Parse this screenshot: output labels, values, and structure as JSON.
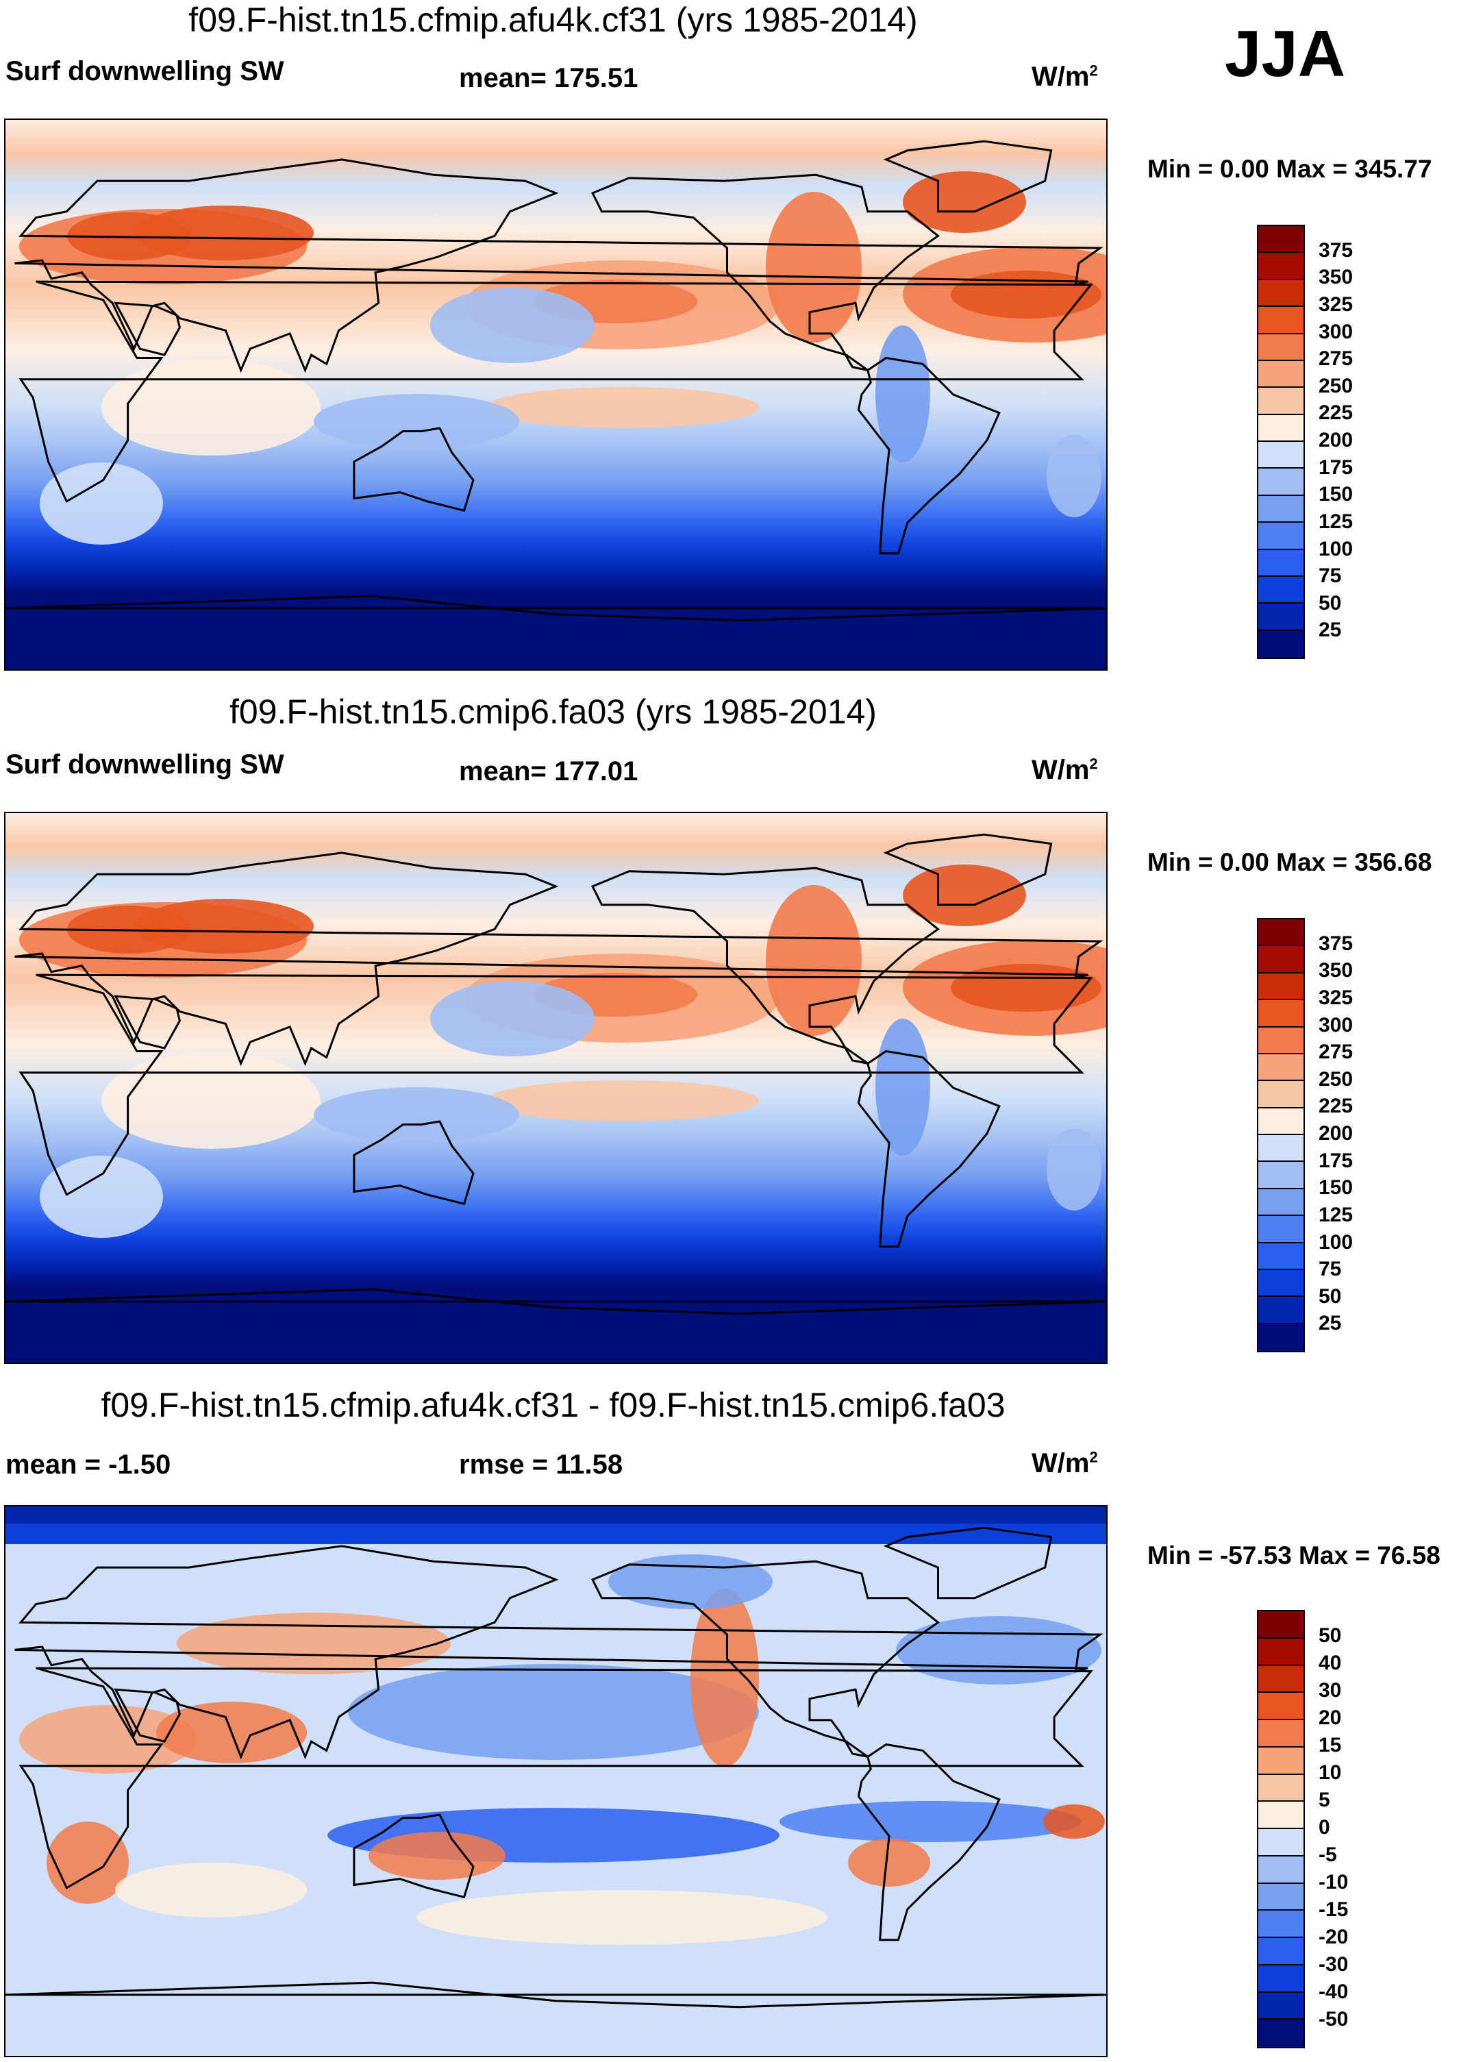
{
  "season": "JJA",
  "units_label": "W/m",
  "units_sup": "2",
  "panels": [
    {
      "title": "f09.F-hist.tn15.cfmip.afu4k.cf31 (yrs 1985-2014)",
      "left_label": "Surf downwelling SW",
      "center_label": "mean= 175.51",
      "minmax": "Min =   0.00 Max = 345.77"
    },
    {
      "title": "f09.F-hist.tn15.cmip6.fa03 (yrs 1985-2014)",
      "left_label": "Surf downwelling SW",
      "center_label": "mean= 177.01",
      "minmax": "Min =   0.00 Max = 356.68"
    },
    {
      "title": "f09.F-hist.tn15.cfmip.afu4k.cf31 - f09.F-hist.tn15.cmip6.fa03",
      "left_label": "mean =  -1.50",
      "center_label": "rmse =  11.58",
      "minmax": "Min = -57.53 Max =  76.58"
    }
  ],
  "chart_data": [
    {
      "type": "heatmap",
      "title": "f09.F-hist.tn15.cfmip.afu4k.cf31 (yrs 1985-2014)",
      "variable": "Surf downwelling SW",
      "units": "W/m2",
      "mean": 175.51,
      "min": 0.0,
      "max": 345.77,
      "levels": [
        25,
        50,
        75,
        100,
        125,
        150,
        175,
        200,
        225,
        250,
        275,
        300,
        325,
        350,
        375
      ]
    },
    {
      "type": "heatmap",
      "title": "f09.F-hist.tn15.cmip6.fa03 (yrs 1985-2014)",
      "variable": "Surf downwelling SW",
      "units": "W/m2",
      "mean": 177.01,
      "min": 0.0,
      "max": 356.68,
      "levels": [
        25,
        50,
        75,
        100,
        125,
        150,
        175,
        200,
        225,
        250,
        275,
        300,
        325,
        350,
        375
      ]
    },
    {
      "type": "heatmap",
      "title": "f09.F-hist.tn15.cfmip.afu4k.cf31 - f09.F-hist.tn15.cmip6.fa03",
      "units": "W/m2",
      "mean": -1.5,
      "rmse": 11.58,
      "min": -57.53,
      "max": 76.58,
      "levels": [
        -50,
        -40,
        -30,
        -20,
        -15,
        -10,
        -5,
        0,
        5,
        10,
        15,
        20,
        30,
        40,
        50
      ]
    }
  ],
  "colors": {
    "abs_scale": [
      "#000e7c",
      "#0026b0",
      "#0d3fd9",
      "#2a5ff0",
      "#4f80f2",
      "#779ff2",
      "#a0bef4",
      "#cfe0f8",
      "#fdeee2",
      "#f9c6a5",
      "#f7a47c",
      "#f27b4d",
      "#e75520",
      "#c72d08",
      "#a30c00",
      "#7c0000"
    ],
    "diff_scale": [
      "#000e7c",
      "#0026b0",
      "#0d3fd9",
      "#2a5ff0",
      "#4f80f2",
      "#779ff2",
      "#a0bef4",
      "#cfe0f8",
      "#fdeee2",
      "#f9c6a5",
      "#f7a47c",
      "#f27b4d",
      "#e75520",
      "#c72d08",
      "#a30c00",
      "#7c0000"
    ]
  }
}
